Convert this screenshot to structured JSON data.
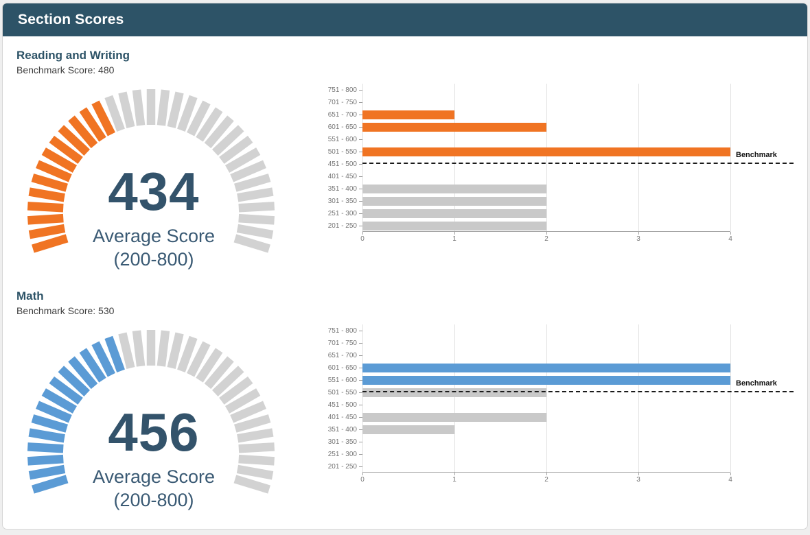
{
  "header": {
    "title": "Section Scores"
  },
  "colors": {
    "header_bg": "#2D5367",
    "heading_text": "#2D5367",
    "value_text": "#33536B",
    "accent_orange": "#F07423",
    "accent_blue": "#5B9BD5",
    "bar_gray": "#C9C9C9",
    "gauge_gray": "#D2D2D2",
    "axis_text": "#757575",
    "benchmark_line": "#1A1A1A"
  },
  "sections": [
    {
      "name": "Reading and Writing",
      "benchmark_label": "Benchmark Score: 480",
      "benchmark_value": 480,
      "gauge_chart": 0,
      "bar_chart": 1
    },
    {
      "name": "Math",
      "benchmark_label": "Benchmark Score: 530",
      "benchmark_value": 530,
      "gauge_chart": 2,
      "bar_chart": 3
    }
  ],
  "chart_data": [
    {
      "type": "gauge",
      "section": "Reading and Writing",
      "value": 434,
      "min": 200,
      "max": 800,
      "label": "Average Score",
      "sublabel": "(200-800)",
      "color": "#F07423"
    },
    {
      "type": "bar",
      "section": "Reading and Writing",
      "orientation": "horizontal",
      "title": "",
      "categories": [
        "751 - 800",
        "701 - 750",
        "651 - 700",
        "601 - 650",
        "551 - 600",
        "501 - 550",
        "451 - 500",
        "401 - 450",
        "351 - 400",
        "301 - 350",
        "251 - 300",
        "201 - 250"
      ],
      "values": [
        0,
        0,
        1,
        2,
        0,
        4,
        0,
        0,
        2,
        2,
        2,
        2
      ],
      "xlim": [
        0,
        4
      ],
      "xticks": [
        0,
        1,
        2,
        3,
        4
      ],
      "score_range": [
        200,
        800
      ],
      "benchmark": {
        "value": 480,
        "label": "Benchmark"
      },
      "highlight_color": "#F07423"
    },
    {
      "type": "gauge",
      "section": "Math",
      "value": 456,
      "min": 200,
      "max": 800,
      "label": "Average Score",
      "sublabel": "(200-800)",
      "color": "#5B9BD5"
    },
    {
      "type": "bar",
      "section": "Math",
      "orientation": "horizontal",
      "title": "",
      "categories": [
        "751 - 800",
        "701 - 750",
        "651 - 700",
        "601 - 650",
        "551 - 600",
        "501 - 550",
        "451 - 500",
        "401 - 450",
        "351 - 400",
        "301 - 350",
        "251 - 300",
        "201 - 250"
      ],
      "values": [
        0,
        0,
        0,
        4,
        4,
        2,
        0,
        2,
        1,
        0,
        0,
        0
      ],
      "xlim": [
        0,
        4
      ],
      "xticks": [
        0,
        1,
        2,
        3,
        4
      ],
      "score_range": [
        200,
        800
      ],
      "benchmark": {
        "value": 530,
        "label": "Benchmark"
      },
      "highlight_color": "#5B9BD5"
    }
  ]
}
